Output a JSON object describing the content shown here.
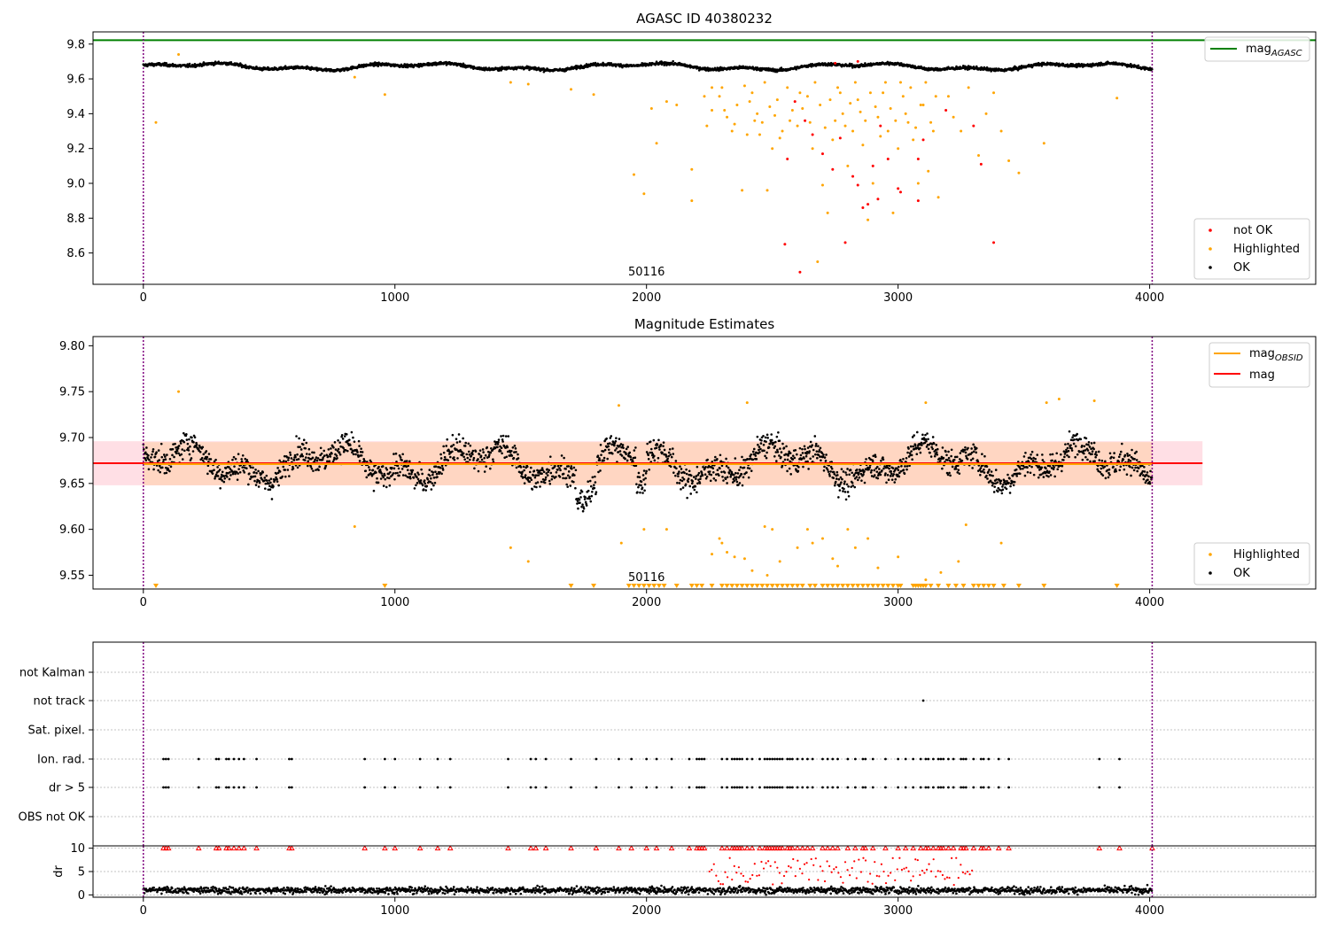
{
  "chart_data": [
    {
      "type": "scatter",
      "title": "AGASC ID 40380232",
      "xlim": [
        -200,
        4660
      ],
      "ylim": [
        8.42,
        9.87
      ],
      "xticks": [
        0,
        1000,
        2000,
        3000,
        4000
      ],
      "yticks": [
        8.6,
        8.8,
        9.0,
        9.2,
        9.4,
        9.6,
        9.8
      ],
      "ytick_labels": [
        "8.6",
        "8.8",
        "9.0",
        "9.2",
        "9.4",
        "9.6",
        "9.8"
      ],
      "obsid_label": "50116",
      "obsid_label_x": 2000,
      "obs_boundaries": [
        0,
        4010
      ],
      "mag_agasc": 9.822,
      "series_summary": {
        "ok_baseline": 9.67,
        "ok_wave_amplitude": 0.015,
        "ok_noise": 0.012
      },
      "legend_top": [
        {
          "name": "mag",
          "sub": "AGASC",
          "color": "#008000"
        }
      ],
      "legend_bottom": [
        {
          "name": "not OK",
          "color": "#ff0000"
        },
        {
          "name": "Highlighted",
          "color": "#ffa500"
        },
        {
          "name": "OK",
          "color": "#000000"
        }
      ],
      "not_ok_points": [
        [
          2550,
          8.65
        ],
        [
          2610,
          8.49
        ],
        [
          2790,
          8.66
        ],
        [
          3380,
          8.66
        ],
        [
          2700,
          9.17
        ],
        [
          2560,
          9.14
        ],
        [
          2660,
          9.28
        ],
        [
          2740,
          9.08
        ],
        [
          2820,
          9.04
        ],
        [
          2840,
          8.99
        ],
        [
          2860,
          8.86
        ],
        [
          2880,
          8.88
        ],
        [
          2920,
          8.91
        ],
        [
          2960,
          9.14
        ],
        [
          3080,
          9.14
        ],
        [
          3000,
          8.97
        ],
        [
          3010,
          8.95
        ],
        [
          3100,
          9.25
        ],
        [
          3080,
          8.9
        ],
        [
          3300,
          9.33
        ],
        [
          3330,
          9.11
        ],
        [
          2900,
          9.1
        ],
        [
          2930,
          9.33
        ],
        [
          2750,
          9.69
        ],
        [
          2840,
          9.7
        ],
        [
          2590,
          9.47
        ],
        [
          2630,
          9.36
        ],
        [
          2770,
          9.26
        ],
        [
          3190,
          9.42
        ]
      ],
      "highlighted_points": [
        [
          50,
          9.35
        ],
        [
          140,
          9.74
        ],
        [
          840,
          9.61
        ],
        [
          960,
          9.51
        ],
        [
          1460,
          9.58
        ],
        [
          1530,
          9.57
        ],
        [
          1700,
          9.54
        ],
        [
          1790,
          9.51
        ],
        [
          1950,
          9.05
        ],
        [
          1990,
          8.94
        ],
        [
          2020,
          9.43
        ],
        [
          2040,
          9.23
        ],
        [
          2080,
          9.47
        ],
        [
          2120,
          9.45
        ],
        [
          2180,
          8.9
        ],
        [
          2180,
          9.08
        ],
        [
          2230,
          9.5
        ],
        [
          2240,
          9.33
        ],
        [
          2260,
          9.42
        ],
        [
          2300,
          9.55
        ],
        [
          2320,
          9.38
        ],
        [
          2340,
          9.3
        ],
        [
          2360,
          9.45
        ],
        [
          2380,
          8.96
        ],
        [
          2400,
          9.28
        ],
        [
          2420,
          9.52
        ],
        [
          2440,
          9.4
        ],
        [
          2460,
          9.35
        ],
        [
          2480,
          8.96
        ],
        [
          2500,
          9.2
        ],
        [
          2520,
          9.48
        ],
        [
          2540,
          9.3
        ],
        [
          2560,
          9.55
        ],
        [
          2580,
          9.42
        ],
        [
          2600,
          9.33
        ],
        [
          2640,
          9.5
        ],
        [
          2660,
          9.2
        ],
        [
          2680,
          8.55
        ],
        [
          2700,
          8.99
        ],
        [
          2720,
          8.83
        ],
        [
          2740,
          9.25
        ],
        [
          2760,
          9.55
        ],
        [
          2780,
          9.4
        ],
        [
          2800,
          9.1
        ],
        [
          2820,
          9.3
        ],
        [
          2840,
          9.48
        ],
        [
          2860,
          9.22
        ],
        [
          2880,
          8.79
        ],
        [
          2900,
          9.0
        ],
        [
          2920,
          9.38
        ],
        [
          2940,
          9.52
        ],
        [
          2960,
          9.3
        ],
        [
          2980,
          8.83
        ],
        [
          3000,
          9.2
        ],
        [
          3020,
          9.5
        ],
        [
          3040,
          9.35
        ],
        [
          3060,
          9.25
        ],
        [
          3080,
          9.0
        ],
        [
          3100,
          9.45
        ],
        [
          3120,
          9.07
        ],
        [
          3140,
          9.3
        ],
        [
          3160,
          8.92
        ],
        [
          3200,
          9.5
        ],
        [
          3220,
          9.38
        ],
        [
          3250,
          9.3
        ],
        [
          3280,
          9.55
        ],
        [
          3320,
          9.16
        ],
        [
          3350,
          9.4
        ],
        [
          3380,
          9.52
        ],
        [
          3410,
          9.3
        ],
        [
          3440,
          9.13
        ],
        [
          3480,
          9.06
        ],
        [
          3580,
          9.23
        ],
        [
          3870,
          9.49
        ],
        [
          2260,
          9.55
        ],
        [
          2290,
          9.5
        ],
        [
          2310,
          9.42
        ],
        [
          2350,
          9.34
        ],
        [
          2390,
          9.56
        ],
        [
          2410,
          9.47
        ],
        [
          2430,
          9.36
        ],
        [
          2450,
          9.28
        ],
        [
          2470,
          9.58
        ],
        [
          2490,
          9.44
        ],
        [
          2510,
          9.39
        ],
        [
          2530,
          9.26
        ],
        [
          2570,
          9.36
        ],
        [
          2610,
          9.52
        ],
        [
          2620,
          9.43
        ],
        [
          2650,
          9.35
        ],
        [
          2670,
          9.58
        ],
        [
          2690,
          9.45
        ],
        [
          2710,
          9.32
        ],
        [
          2730,
          9.48
        ],
        [
          2750,
          9.36
        ],
        [
          2770,
          9.52
        ],
        [
          2790,
          9.33
        ],
        [
          2810,
          9.46
        ],
        [
          2830,
          9.58
        ],
        [
          2850,
          9.41
        ],
        [
          2870,
          9.36
        ],
        [
          2890,
          9.52
        ],
        [
          2910,
          9.44
        ],
        [
          2930,
          9.27
        ],
        [
          2950,
          9.58
        ],
        [
          2970,
          9.43
        ],
        [
          2990,
          9.36
        ],
        [
          3010,
          9.58
        ],
        [
          3030,
          9.4
        ],
        [
          3050,
          9.55
        ],
        [
          3070,
          9.32
        ],
        [
          3090,
          9.45
        ],
        [
          3110,
          9.58
        ],
        [
          3130,
          9.35
        ],
        [
          3150,
          9.5
        ]
      ],
      "ok_gap_ranges": [
        [
          1930,
          1960
        ],
        [
          2180,
          2210
        ]
      ]
    },
    {
      "type": "scatter",
      "title": "Magnitude Estimates",
      "xlim": [
        -200,
        4660
      ],
      "ylim": [
        9.535,
        9.81
      ],
      "xticks": [
        0,
        1000,
        2000,
        3000,
        4000
      ],
      "yticks": [
        9.55,
        9.6,
        9.65,
        9.7,
        9.75,
        9.8
      ],
      "ytick_labels": [
        "9.55",
        "9.60",
        "9.65",
        "9.70",
        "9.75",
        "9.80"
      ],
      "obsid_label": "50116",
      "obsid_label_x": 2000,
      "obs_boundaries": [
        0,
        4010
      ],
      "mag": 9.672,
      "mag_band": [
        9.648,
        9.696
      ],
      "mag_obsid": 9.671,
      "obsid_band": [
        9.648,
        9.695
      ],
      "obsid_span": [
        0,
        4010
      ],
      "mag_span": [
        -200,
        4210
      ],
      "legend_top": [
        {
          "name": "mag",
          "sub": "OBSID",
          "color": "#ffa500"
        },
        {
          "name": "mag",
          "sub": "",
          "color": "#ff0000"
        }
      ],
      "legend_bottom": [
        {
          "name": "Highlighted",
          "color": "#ffa500"
        },
        {
          "name": "OK",
          "color": "#000000"
        }
      ],
      "highlighted_points": [
        [
          140,
          9.75
        ],
        [
          840,
          9.603
        ],
        [
          1460,
          9.58
        ],
        [
          1530,
          9.565
        ],
        [
          1900,
          9.585
        ],
        [
          1990,
          9.6
        ],
        [
          2080,
          9.6
        ],
        [
          2260,
          9.573
        ],
        [
          2290,
          9.59
        ],
        [
          2300,
          9.585
        ],
        [
          2320,
          9.575
        ],
        [
          2350,
          9.57
        ],
        [
          2390,
          9.568
        ],
        [
          2420,
          9.555
        ],
        [
          2470,
          9.603
        ],
        [
          2480,
          9.55
        ],
        [
          2500,
          9.6
        ],
        [
          2530,
          9.565
        ],
        [
          2600,
          9.58
        ],
        [
          2640,
          9.6
        ],
        [
          2660,
          9.585
        ],
        [
          2700,
          9.59
        ],
        [
          2740,
          9.568
        ],
        [
          2760,
          9.56
        ],
        [
          2800,
          9.6
        ],
        [
          2830,
          9.58
        ],
        [
          2880,
          9.59
        ],
        [
          2920,
          9.558
        ],
        [
          3000,
          9.57
        ],
        [
          3110,
          9.545
        ],
        [
          3170,
          9.553
        ],
        [
          3240,
          9.565
        ],
        [
          3270,
          9.605
        ],
        [
          3410,
          9.585
        ],
        [
          2400,
          9.738
        ],
        [
          3640,
          9.742
        ],
        [
          3780,
          9.74
        ],
        [
          3110,
          9.738
        ],
        [
          3590,
          9.738
        ],
        [
          1890,
          9.735
        ]
      ],
      "below_markers": [
        50,
        960,
        1700,
        1790,
        1930,
        1950,
        1970,
        1990,
        2010,
        2030,
        2050,
        2070,
        2120,
        2180,
        2200,
        2220,
        2260,
        2300,
        2320,
        2340,
        2360,
        2380,
        2400,
        2420,
        2440,
        2460,
        2480,
        2500,
        2520,
        2540,
        2560,
        2580,
        2600,
        2620,
        2650,
        2670,
        2700,
        2720,
        2740,
        2760,
        2780,
        2800,
        2820,
        2840,
        2860,
        2880,
        2900,
        2920,
        2940,
        2960,
        2980,
        3000,
        3010,
        3060,
        3070,
        3080,
        3090,
        3100,
        3110,
        3130,
        3160,
        3200,
        3230,
        3260,
        3300,
        3320,
        3340,
        3360,
        3380,
        3420,
        3480,
        3580,
        3870
      ]
    },
    {
      "type": "scatter",
      "title": "",
      "xlim": [
        -200,
        4660
      ],
      "xticks": [
        0,
        1000,
        2000,
        3000,
        4000
      ],
      "flag_rows": [
        "not Kalman",
        "not track",
        "Sat. pixel.",
        "Ion. rad.",
        "dr > 5",
        "OBS not OK"
      ],
      "flag_points": {
        "not track": [
          3100
        ],
        "Ion. rad.": [
          80,
          90,
          100,
          220,
          290,
          300,
          330,
          340,
          360,
          380,
          400,
          450,
          580,
          590,
          880,
          960,
          1000,
          1100,
          1170,
          1220,
          1450,
          1540,
          1560,
          1600,
          1700,
          1800,
          1890,
          1940,
          2000,
          2040,
          2100,
          2170,
          2200,
          2210,
          2220,
          2230,
          2300,
          2320,
          2340,
          2350,
          2360,
          2370,
          2380,
          2400,
          2420,
          2450,
          2470,
          2480,
          2490,
          2500,
          2510,
          2520,
          2530,
          2540,
          2560,
          2570,
          2580,
          2600,
          2620,
          2640,
          2660,
          2700,
          2720,
          2740,
          2760,
          2800,
          2830,
          2860,
          2870,
          2900,
          2950,
          3000,
          3030,
          3060,
          3090,
          3110,
          3120,
          3140,
          3160,
          3170,
          3180,
          3200,
          3220,
          3250,
          3260,
          3270,
          3300,
          3330,
          3340,
          3360,
          3400,
          3440,
          3800,
          3880
        ],
        "dr > 5": [
          80,
          90,
          100,
          220,
          290,
          300,
          330,
          340,
          360,
          380,
          400,
          450,
          580,
          590,
          880,
          960,
          1000,
          1100,
          1170,
          1220,
          1450,
          1540,
          1560,
          1600,
          1700,
          1800,
          1890,
          1940,
          2000,
          2040,
          2100,
          2170,
          2200,
          2210,
          2220,
          2230,
          2300,
          2320,
          2340,
          2350,
          2360,
          2370,
          2380,
          2400,
          2420,
          2450,
          2470,
          2480,
          2490,
          2500,
          2510,
          2520,
          2530,
          2540,
          2560,
          2570,
          2580,
          2600,
          2620,
          2640,
          2660,
          2700,
          2720,
          2740,
          2760,
          2800,
          2830,
          2860,
          2870,
          2900,
          2950,
          3000,
          3030,
          3060,
          3090,
          3110,
          3120,
          3140,
          3160,
          3170,
          3180,
          3200,
          3220,
          3250,
          3260,
          3270,
          3300,
          3330,
          3340,
          3360,
          3400,
          3440,
          3800,
          3880
        ]
      }
    },
    {
      "type": "scatter",
      "ylabel": "dr",
      "xlim": [
        -200,
        4660
      ],
      "ylim": [
        -0.5,
        10.5
      ],
      "xticks": [
        0,
        1000,
        2000,
        3000,
        4000
      ],
      "yticks": [
        0,
        5,
        10
      ],
      "ytick_labels": [
        "0",
        "5",
        "10"
      ],
      "xtick_labels": [
        "0",
        "1000",
        "2000",
        "3000",
        "4000"
      ],
      "dr_baseline": 1.0,
      "dr_clip": 10,
      "red_markers_at_10": [
        80,
        90,
        100,
        220,
        290,
        300,
        330,
        340,
        360,
        380,
        400,
        450,
        580,
        590,
        880,
        960,
        1000,
        1100,
        1170,
        1220,
        1450,
        1540,
        1560,
        1600,
        1700,
        1800,
        1890,
        1940,
        2000,
        2040,
        2100,
        2170,
        2200,
        2210,
        2220,
        2230,
        2300,
        2320,
        2340,
        2350,
        2360,
        2370,
        2380,
        2400,
        2420,
        2450,
        2470,
        2480,
        2490,
        2500,
        2510,
        2520,
        2530,
        2540,
        2560,
        2570,
        2580,
        2600,
        2620,
        2640,
        2660,
        2700,
        2720,
        2740,
        2760,
        2800,
        2830,
        2860,
        2870,
        2900,
        2950,
        3000,
        3030,
        3060,
        3090,
        3110,
        3120,
        3140,
        3160,
        3170,
        3180,
        3200,
        3220,
        3250,
        3260,
        3270,
        3300,
        3330,
        3340,
        3360,
        3400,
        3440,
        3800,
        3880,
        4010
      ]
    }
  ],
  "colors": {
    "ok": "#000000",
    "highlighted": "#ffa500",
    "not_ok": "#ff0000",
    "agasc_line": "#008000",
    "obs_boundary": "#800080",
    "mag_band": "#ffc0cb",
    "obsid_band": "#ffd2b4",
    "grid": "#b0b0b0"
  }
}
